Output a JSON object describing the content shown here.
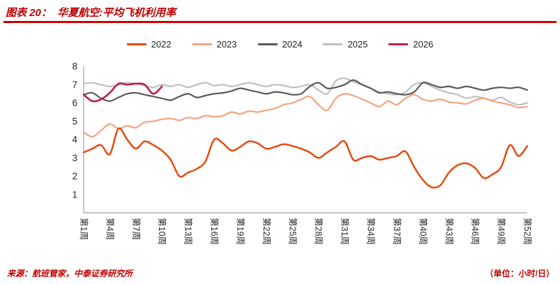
{
  "header": {
    "figure_label": "图表 20：",
    "title": "图表 20：  华夏航空:平均飞机利用率"
  },
  "footer": {
    "source": "来源：航班管家，中泰证券研究所",
    "unit": "（单位：小时/日）"
  },
  "colors": {
    "accent_red": "#c00000"
  },
  "chart_data": {
    "type": "line",
    "title": "华夏航空:平均飞机利用率",
    "xlabel": "周",
    "ylabel": "小时/日",
    "ylim": [
      0,
      8
    ],
    "y_ticks": [
      1,
      2,
      3,
      4,
      5,
      6,
      7,
      8
    ],
    "x_weeks": 52,
    "x_tick_step": 3,
    "x_tick_labels": [
      "第1周",
      "第4周",
      "第7周",
      "第10周",
      "第13周",
      "第16周",
      "第19周",
      "第22周",
      "第25周",
      "第28周",
      "第31周",
      "第34周",
      "第37周",
      "第40周",
      "第43周",
      "第46周",
      "第49周",
      "第52周"
    ],
    "grid": false,
    "legend_position": "top",
    "series": [
      {
        "name": "2022",
        "color": "#E8490F",
        "values": [
          3.3,
          3.5,
          3.7,
          3.2,
          4.6,
          4.0,
          3.5,
          3.9,
          3.7,
          3.4,
          2.9,
          2.0,
          2.2,
          2.4,
          2.8,
          4.0,
          3.8,
          3.4,
          3.6,
          3.9,
          3.8,
          3.5,
          3.6,
          3.75,
          3.65,
          3.5,
          3.3,
          3.0,
          3.3,
          3.6,
          3.9,
          2.9,
          3.0,
          3.1,
          2.9,
          3.0,
          3.1,
          3.35,
          2.5,
          1.8,
          1.4,
          1.5,
          2.2,
          2.6,
          2.7,
          2.45,
          1.9,
          2.1,
          2.5,
          3.7,
          3.1,
          3.65
        ]
      },
      {
        "name": "2023",
        "color": "#F5A37E",
        "values": [
          4.4,
          4.15,
          4.5,
          4.85,
          4.6,
          4.75,
          4.65,
          4.95,
          5.0,
          5.1,
          5.15,
          5.05,
          5.2,
          5.15,
          5.3,
          5.25,
          5.3,
          5.5,
          5.4,
          5.55,
          5.5,
          5.6,
          5.7,
          5.9,
          6.0,
          6.2,
          6.35,
          5.9,
          5.6,
          6.25,
          6.5,
          6.4,
          6.2,
          6.0,
          5.8,
          6.1,
          5.9,
          6.25,
          6.45,
          6.2,
          6.1,
          6.2,
          6.05,
          6.0,
          5.95,
          6.15,
          6.25,
          6.1,
          6.0,
          5.9,
          5.75,
          5.8
        ]
      },
      {
        "name": "2024",
        "color": "#595959",
        "values": [
          6.45,
          6.55,
          6.25,
          6.1,
          6.3,
          6.5,
          6.55,
          6.45,
          6.35,
          6.25,
          6.15,
          6.35,
          6.5,
          6.3,
          6.4,
          6.5,
          6.55,
          6.65,
          6.8,
          6.7,
          6.6,
          6.5,
          6.6,
          6.55,
          6.45,
          6.5,
          6.9,
          7.1,
          6.8,
          6.85,
          7.0,
          7.25,
          7.0,
          6.8,
          6.55,
          6.6,
          6.5,
          6.45,
          6.6,
          7.1,
          7.0,
          6.85,
          6.9,
          6.8,
          6.9,
          6.8,
          6.7,
          6.8,
          6.85,
          6.8,
          6.85,
          6.7
        ]
      },
      {
        "name": "2025",
        "color": "#BFBFBF",
        "values": [
          7.05,
          7.1,
          7.0,
          6.9,
          7.0,
          7.1,
          7.05,
          6.95,
          6.85,
          7.0,
          6.9,
          7.0,
          6.85,
          7.0,
          7.1,
          6.95,
          7.0,
          6.9,
          7.0,
          7.1,
          7.0,
          6.9,
          7.0,
          6.95,
          6.85,
          6.9,
          7.0,
          6.7,
          6.5,
          7.2,
          7.35,
          7.15,
          7.0,
          6.8,
          6.6,
          6.5,
          6.45,
          6.6,
          7.0,
          7.1,
          6.9,
          6.7,
          6.55,
          6.45,
          6.25,
          6.35,
          6.25,
          6.15,
          6.3,
          6.05,
          5.9,
          6.0
        ]
      },
      {
        "name": "2026",
        "color": "#BE2449",
        "values": [
          6.45,
          6.1,
          6.2,
          6.55,
          7.05,
          7.0,
          7.05,
          7.0,
          6.5,
          6.9
        ]
      }
    ]
  }
}
